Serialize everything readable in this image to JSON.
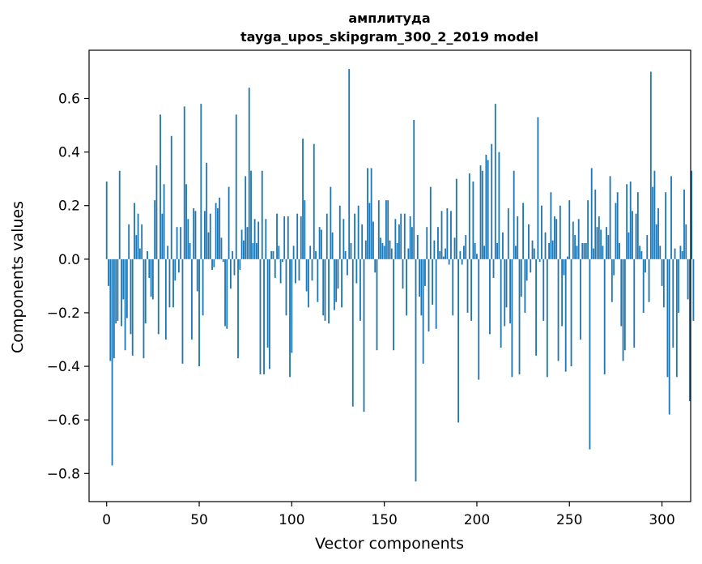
{
  "chart_data": {
    "type": "bar",
    "title": "амплитуда",
    "subtitle": "tayga_upos_skipgram_300_2_2019 model",
    "xlabel": "Vector components",
    "ylabel": "Components values",
    "xlim": [
      -9.5,
      315.5
    ],
    "ylim": [
      -0.905,
      0.78
    ],
    "xticks": [
      0,
      50,
      100,
      150,
      200,
      250,
      300
    ],
    "xtick_labels": [
      "0",
      "50",
      "100",
      "150",
      "200",
      "250",
      "300"
    ],
    "yticks": [
      -0.8,
      -0.6,
      -0.4,
      -0.2,
      0.0,
      0.2,
      0.4,
      0.6
    ],
    "ytick_labels": [
      "−0.8",
      "−0.6",
      "−0.4",
      "−0.2",
      "0.0",
      "0.2",
      "0.4",
      "0.6"
    ],
    "grid": false,
    "bar_color": "#1f77b4",
    "series": [
      {
        "name": "components",
        "values": [
          0.29,
          -0.1,
          -0.38,
          -0.77,
          -0.37,
          -0.24,
          -0.23,
          0.33,
          -0.25,
          -0.15,
          -0.34,
          -0.22,
          0.13,
          -0.28,
          -0.36,
          0.21,
          0.09,
          0.17,
          0.04,
          0.13,
          -0.37,
          -0.24,
          0.03,
          -0.07,
          -0.14,
          -0.15,
          0.22,
          0.35,
          -0.28,
          0.54,
          0.17,
          0.28,
          -0.3,
          0.05,
          -0.18,
          0.46,
          -0.18,
          -0.08,
          0.12,
          -0.05,
          0.12,
          -0.39,
          0.57,
          0.28,
          0.15,
          0.06,
          -0.3,
          0.19,
          0.18,
          -0.12,
          -0.4,
          0.58,
          -0.21,
          0.18,
          0.36,
          0.1,
          0.17,
          -0.04,
          -0.03,
          0.21,
          0.19,
          0.23,
          0.08,
          -0.01,
          -0.25,
          -0.26,
          0.27,
          -0.11,
          0.03,
          -0.06,
          0.54,
          -0.37,
          -0.04,
          0.11,
          0.07,
          0.31,
          0.12,
          0.64,
          0.33,
          0.06,
          0.15,
          0.06,
          0.14,
          -0.43,
          0.33,
          -0.43,
          0.15,
          -0.33,
          -0.41,
          0.03,
          0.03,
          -0.07,
          0.17,
          0.05,
          -0.09,
          -0.01,
          0.16,
          -0.21,
          0.16,
          -0.44,
          -0.35,
          0.05,
          -0.09,
          0.17,
          -0.08,
          0.16,
          0.45,
          0.22,
          -0.12,
          -0.18,
          0.05,
          -0.08,
          0.43,
          0.03,
          -0.16,
          0.12,
          0.11,
          -0.21,
          -0.23,
          0.17,
          -0.24,
          0.27,
          0.1,
          -0.19,
          -0.16,
          -0.11,
          0.2,
          -0.18,
          0.15,
          0.03,
          -0.06,
          0.71,
          0.06,
          -0.55,
          0.17,
          -0.09,
          0.2,
          -0.23,
          0.13,
          -0.57,
          0.07,
          0.34,
          0.21,
          0.34,
          0.14,
          -0.05,
          -0.34,
          0.22,
          0.08,
          0.06,
          0.05,
          0.22,
          0.22,
          0.07,
          0.04,
          -0.34,
          0.15,
          0.06,
          0.13,
          0.17,
          -0.11,
          0.17,
          -0.21,
          0.04,
          0.16,
          0.12,
          0.52,
          -0.83,
          0.09,
          -0.14,
          -0.21,
          -0.39,
          -0.1,
          0.12,
          -0.27,
          0.27,
          -0.17,
          0.07,
          -0.26,
          0.12,
          0.03,
          0.18,
          0.01,
          0.04,
          0.19,
          -0.02,
          0.18,
          -0.21,
          0.08,
          0.3,
          -0.61,
          0.03,
          -0.02,
          0.05,
          0.09,
          -0.2,
          0.32,
          -0.23,
          0.29,
          0.06,
          0.02,
          -0.45,
          0.35,
          0.33,
          0.05,
          0.39,
          0.37,
          -0.28,
          0.43,
          -0.07,
          0.58,
          0.06,
          0.4,
          -0.33,
          0.1,
          -0.25,
          -0.18,
          0.19,
          -0.24,
          -0.44,
          0.33,
          0.05,
          0.16,
          -0.43,
          -0.14,
          0.21,
          -0.2,
          -0.08,
          0.13,
          -0.05,
          0.07,
          0.04,
          -0.36,
          0.53,
          -0.01,
          0.2,
          -0.23,
          0.1,
          -0.44,
          0.06,
          0.25,
          0.07,
          0.16,
          0.15,
          -0.38,
          0.2,
          -0.25,
          -0.06,
          -0.42,
          0.01,
          0.22,
          -0.4,
          0.14,
          0.09,
          0.05,
          0.15,
          -0.3,
          0.06,
          0.06,
          0.06,
          0.22,
          -0.71,
          0.34,
          0.04,
          0.26,
          0.12,
          0.16,
          0.11,
          0.05,
          -0.43,
          0.12,
          0.09,
          0.31,
          -0.16,
          -0.06,
          0.21,
          0.25,
          0.06,
          -0.25,
          -0.38,
          -0.34,
          0.28,
          0.1,
          0.29,
          0.18,
          -0.33,
          0.17,
          0.25,
          0.05,
          0.03,
          -0.2,
          -0.05,
          0.09,
          -0.16,
          0.7,
          0.27,
          0.33,
          0.13,
          0.19,
          0.05,
          -0.1,
          -0.18,
          0.25,
          -0.44,
          -0.58,
          0.31,
          -0.33,
          0.04,
          -0.44,
          -0.2,
          0.05,
          0.03,
          0.26,
          0.13,
          -0.15,
          -0.53,
          0.33,
          -0.23
        ]
      }
    ]
  }
}
